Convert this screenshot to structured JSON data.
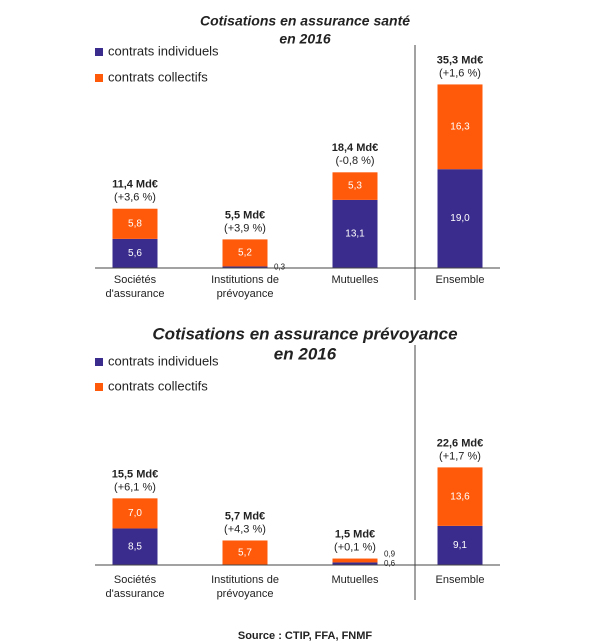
{
  "chart_data": [
    {
      "type": "bar",
      "stacked": true,
      "title": [
        "Cotisations en assurance santé",
        "en 2016"
      ],
      "categories": [
        [
          "Sociétés",
          "d'assurance"
        ],
        [
          "Institutions de",
          "prévoyance"
        ],
        [
          "Mutuelles"
        ],
        [
          "Ensemble"
        ]
      ],
      "series": [
        {
          "name": "contrats individuels",
          "color": "#3a2c8c",
          "values": [
            5.6,
            0.3,
            13.1,
            19.0
          ],
          "value_labels": [
            "5,6",
            "0,3",
            "13,1",
            "19,0"
          ]
        },
        {
          "name": "contrats collectifs",
          "color": "#ff5a0a",
          "values": [
            5.8,
            5.2,
            5.3,
            16.3
          ],
          "value_labels": [
            "5,8",
            "5,2",
            "5,3",
            "16,3"
          ]
        }
      ],
      "total_labels": [
        "11,4 Md€",
        "5,5 Md€",
        "18,4 Md€",
        "35,3 Md€"
      ],
      "change_labels": [
        "(+3,6 %)",
        "(+3,9 %)",
        "(-0,8 %)",
        "(+1,6 %)"
      ]
    },
    {
      "type": "bar",
      "stacked": true,
      "title": [
        "Cotisations en assurance prévoyance",
        "en 2016"
      ],
      "categories": [
        [
          "Sociétés",
          "d'assurance"
        ],
        [
          "Institutions de",
          "prévoyance"
        ],
        [
          "Mutuelles"
        ],
        [
          "Ensemble"
        ]
      ],
      "series": [
        {
          "name": "contrats individuels",
          "color": "#3a2c8c",
          "values": [
            8.5,
            0,
            0.6,
            9.1
          ],
          "value_labels": [
            "8,5",
            null,
            "0,6",
            "9,1"
          ]
        },
        {
          "name": "contrats collectifs",
          "color": "#ff5a0a",
          "values": [
            7.0,
            5.7,
            0.9,
            13.6
          ],
          "value_labels": [
            "7,0",
            "5,7",
            "0,9",
            "13,6"
          ]
        }
      ],
      "total_labels": [
        "15,5 Md€",
        "5,7 Md€",
        "1,5 Md€",
        "22,6 Md€"
      ],
      "change_labels": [
        "(+6,1 %)",
        "(+4,3 %)",
        "(+0,1 %)",
        "(+1,7 %)"
      ]
    }
  ],
  "source": "Source : CTIP, FFA, FNMF"
}
